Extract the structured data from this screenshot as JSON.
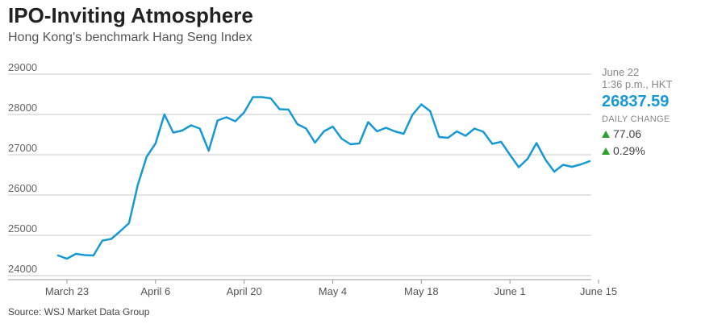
{
  "header": {
    "title": "IPO-Inviting Atmosphere",
    "subtitle": "Hong Kong's benchmark Hang Seng Index"
  },
  "source": "Source: WSJ Market Data Group",
  "summary": {
    "date": "June 22",
    "time": "1:36 p.m., HKT",
    "value": "26837.59",
    "change_label": "DAILY CHANGE",
    "change_points": "77.06",
    "change_percent": "0.29%",
    "up_color": "#2ca02c"
  },
  "chart_data": {
    "type": "line",
    "title": "IPO-Inviting Atmosphere",
    "subtitle": "Hong Kong's benchmark Hang Seng Index",
    "x_tick_labels": [
      "March 23",
      "April 6",
      "April 20",
      "May 4",
      "May 18",
      "June 1",
      "June 15"
    ],
    "x_tick_positions": [
      1,
      11,
      21,
      31,
      41,
      51,
      61
    ],
    "y_ticks": [
      24000,
      25000,
      26000,
      27000,
      28000,
      29000
    ],
    "ylim": [
      23900,
      29100
    ],
    "grid": true,
    "line_color": "#1899d6",
    "series": [
      {
        "values": [
          24500,
          24420,
          24540,
          24510,
          24500,
          24870,
          24910,
          25100,
          25300,
          26250,
          26950,
          27280,
          28000,
          27550,
          27600,
          27730,
          27650,
          27100,
          27850,
          27930,
          27830,
          28050,
          28430,
          28430,
          28400,
          28130,
          28120,
          27760,
          27650,
          27300,
          27580,
          27700,
          27400,
          27260,
          27280,
          27810,
          27580,
          27670,
          27580,
          27520,
          27990,
          28250,
          28080,
          27440,
          27420,
          27580,
          27470,
          27650,
          27570,
          27270,
          27320,
          27000,
          26690,
          26900,
          27290,
          26880,
          26580,
          26750,
          26700,
          26760,
          26840
        ]
      }
    ]
  }
}
